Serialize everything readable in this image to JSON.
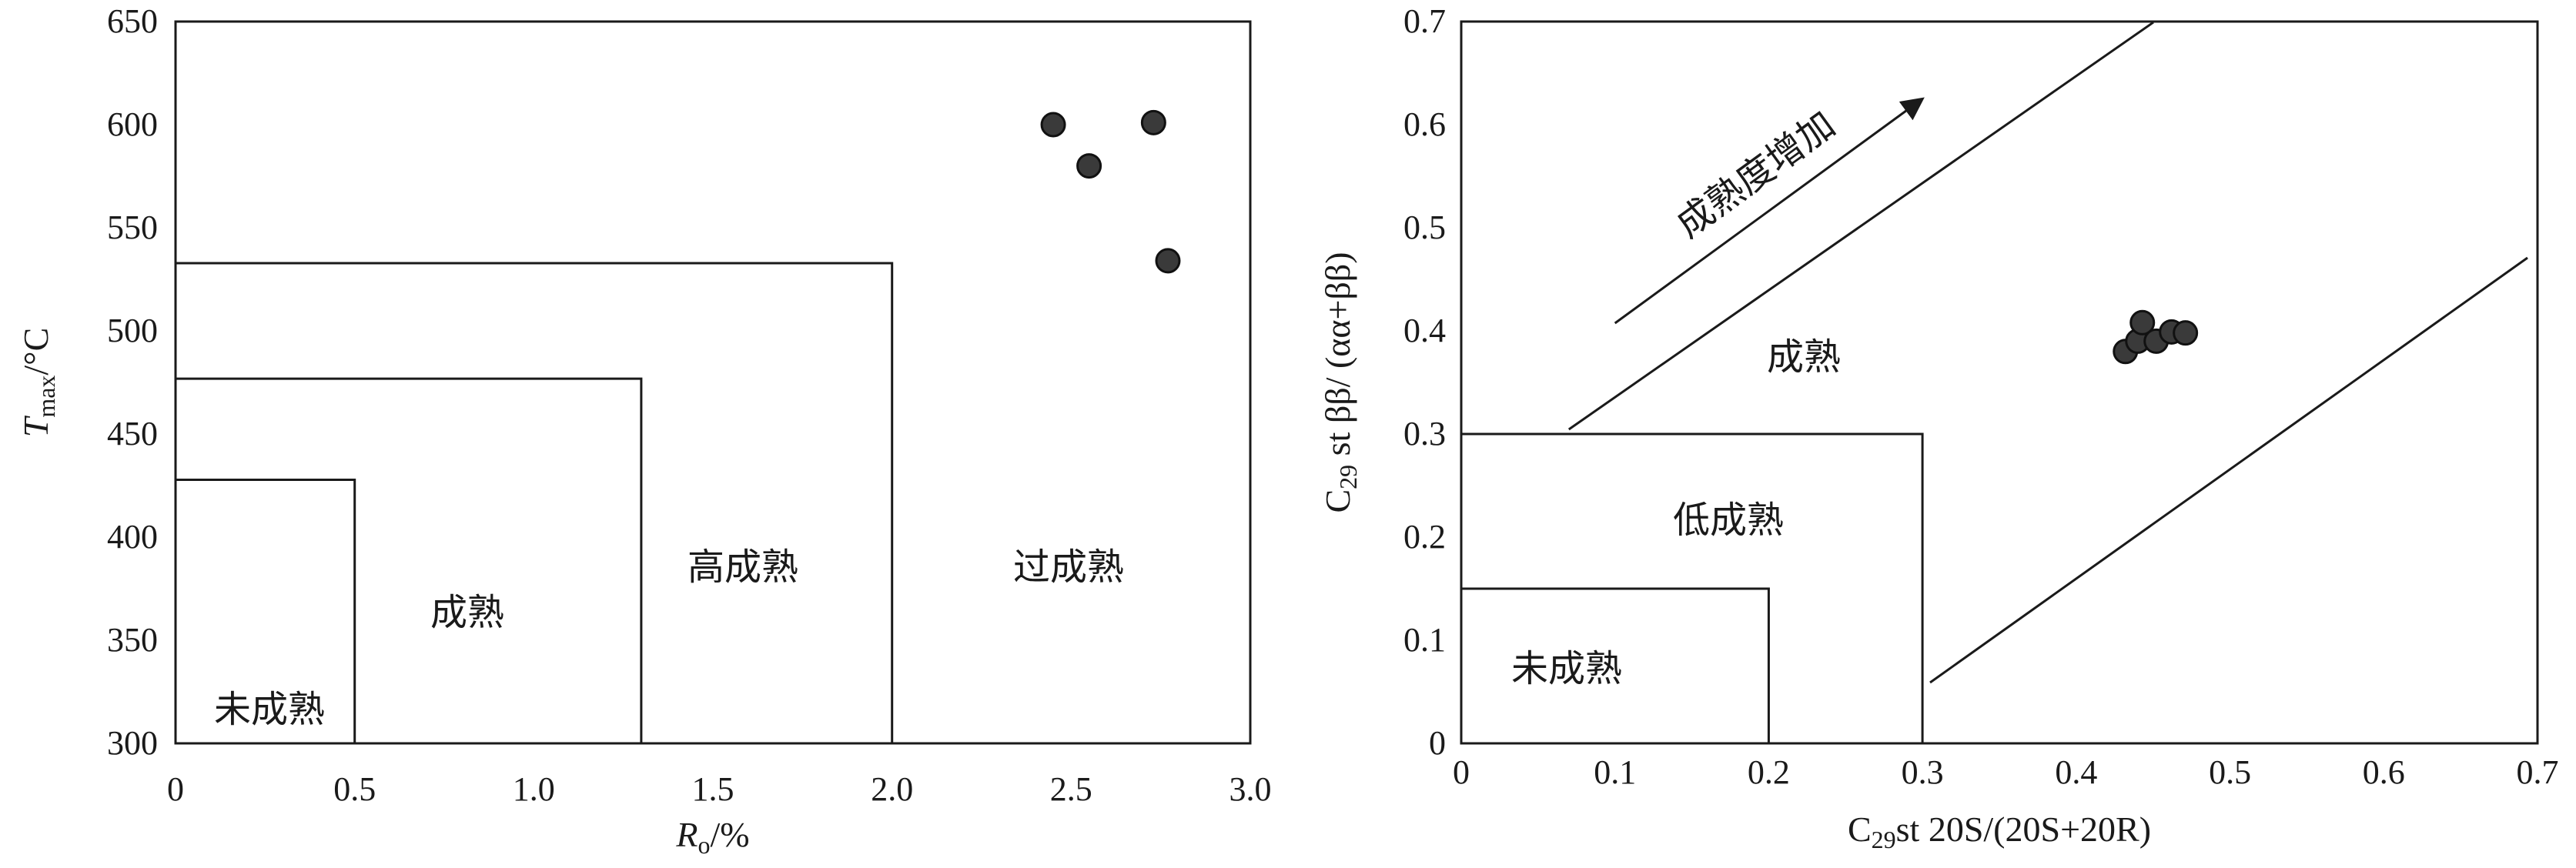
{
  "chart_data": [
    {
      "type": "scatter",
      "xlabel": "Ro/%",
      "ylabel": "Tmax/°C",
      "xlim": [
        0,
        3.0
      ],
      "ylim": [
        300,
        650
      ],
      "xticks": [
        "0",
        "0.5",
        "1.0",
        "1.5",
        "2.0",
        "2.5",
        "3.0"
      ],
      "yticks": [
        "300",
        "350",
        "400",
        "450",
        "500",
        "550",
        "600",
        "650"
      ],
      "regions": [
        {
          "label": "未成熟",
          "x_max": 0.5,
          "y_max": 427
        },
        {
          "label": "成熟",
          "x_max": 1.3,
          "y_max": 476
        },
        {
          "label": "高成熟",
          "x_max": 2.0,
          "y_max": 532
        },
        {
          "label": "过成熟"
        }
      ],
      "points": [
        {
          "x": 2.45,
          "y": 600
        },
        {
          "x": 2.55,
          "y": 580
        },
        {
          "x": 2.73,
          "y": 601
        },
        {
          "x": 2.77,
          "y": 534
        }
      ]
    },
    {
      "type": "scatter",
      "xlabel": "C29st 20S/(20S+20R)",
      "ylabel": "C29 st ββ/ (αα+ββ)",
      "xlim": [
        0,
        0.7
      ],
      "ylim": [
        0,
        0.7
      ],
      "xticks": [
        "0",
        "0.1",
        "0.2",
        "0.3",
        "0.4",
        "0.5",
        "0.6",
        "0.7"
      ],
      "yticks": [
        "0",
        "0.1",
        "0.2",
        "0.3",
        "0.4",
        "0.5",
        "0.6",
        "0.7"
      ],
      "regions": [
        {
          "label": "未成熟",
          "x_max": 0.2,
          "y_max": 0.15
        },
        {
          "label": "低成熟",
          "x_max": 0.3,
          "y_max": 0.3
        },
        {
          "label": "成熟"
        }
      ],
      "annotation": "成熟度增加",
      "points": [
        {
          "x": 0.432,
          "y": 0.38
        },
        {
          "x": 0.44,
          "y": 0.39
        },
        {
          "x": 0.443,
          "y": 0.408
        },
        {
          "x": 0.452,
          "y": 0.39
        },
        {
          "x": 0.462,
          "y": 0.399
        },
        {
          "x": 0.471,
          "y": 0.398
        }
      ]
    }
  ],
  "left": {
    "x_main": "R",
    "x_sub": "o",
    "x_unit": "/%",
    "y_main": "T",
    "y_sub": "max",
    "y_unit": "/°C",
    "zone_immature": "未成熟",
    "zone_mature": "成熟",
    "zone_high": "高成熟",
    "zone_over": "过成熟"
  },
  "right": {
    "x_pre": "C",
    "x_sub": "29",
    "x_rest": "st 20S/(20S+20R)",
    "y_pre": "C",
    "y_sub": "29",
    "y_rest": " st ββ/ (αα+ββ)",
    "zone_immature": "未成熟",
    "zone_low": "低成熟",
    "zone_mature": "成熟",
    "arrow_label": "成熟度增加"
  }
}
